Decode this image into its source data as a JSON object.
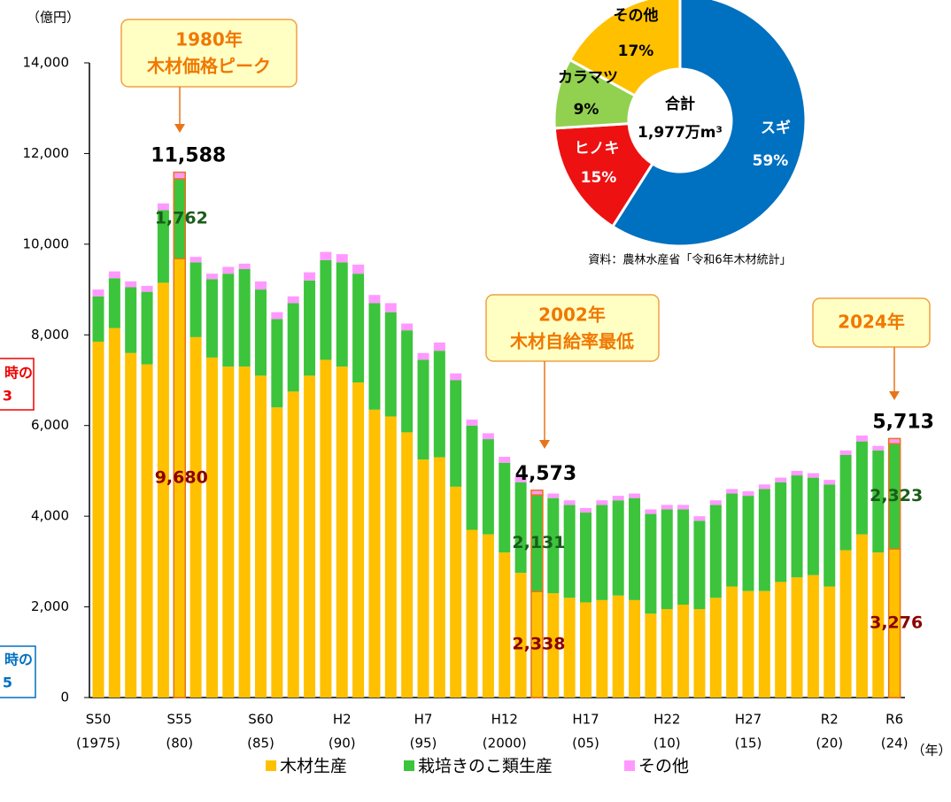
{
  "chart_data": [
    {
      "type": "stacked-bar",
      "y_unit": "（億円）",
      "x_unit": "（年）",
      "categories": [
        "S50",
        null,
        null,
        null,
        null,
        "S55",
        null,
        null,
        null,
        null,
        "S60",
        null,
        null,
        null,
        null,
        "H2",
        null,
        null,
        null,
        null,
        "H7",
        null,
        null,
        null,
        null,
        "H12",
        null,
        null,
        null,
        null,
        "H17",
        null,
        null,
        null,
        null,
        "H22",
        null,
        null,
        null,
        null,
        "H27",
        null,
        null,
        null,
        null,
        "R2",
        null,
        null,
        null,
        "R6"
      ],
      "category_years": [
        "(1975)",
        null,
        null,
        null,
        null,
        "(80)",
        null,
        null,
        null,
        null,
        "(85)",
        null,
        null,
        null,
        null,
        "(90)",
        null,
        null,
        null,
        null,
        "(95)",
        null,
        null,
        null,
        null,
        "(2000)",
        null,
        null,
        null,
        null,
        "(05)",
        null,
        null,
        null,
        null,
        "(10)",
        null,
        null,
        null,
        null,
        "(15)",
        null,
        null,
        null,
        null,
        "(20)",
        null,
        null,
        null,
        "(24)"
      ],
      "series": [
        {
          "name": "木材生産",
          "color": "#ffc000",
          "values": [
            7850,
            8150,
            7600,
            7350,
            9150,
            9680,
            7950,
            7500,
            7300,
            7300,
            7100,
            6400,
            6750,
            7100,
            7450,
            7300,
            6950,
            6350,
            6200,
            5850,
            5250,
            5300,
            4650,
            3700,
            3600,
            3200,
            2750,
            2338,
            2300,
            2200,
            2100,
            2150,
            2250,
            2150,
            1850,
            1950,
            2050,
            1950,
            2200,
            2450,
            2350,
            2350,
            2550,
            2650,
            2700,
            2450,
            3250,
            3600,
            3200,
            3276
          ],
          "value_labels": [
            null,
            null,
            null,
            null,
            null,
            "9,680",
            null,
            null,
            null,
            null,
            null,
            null,
            null,
            null,
            null,
            null,
            null,
            null,
            null,
            null,
            null,
            null,
            null,
            null,
            null,
            null,
            null,
            "2,338",
            null,
            null,
            null,
            null,
            null,
            null,
            null,
            null,
            null,
            null,
            null,
            null,
            null,
            null,
            null,
            null,
            null,
            null,
            null,
            null,
            null,
            "3,276"
          ],
          "label_color": "#8b0000"
        },
        {
          "name": "栽培きのこ類生産",
          "color": "#3cc43c",
          "values": [
            1000,
            1100,
            1450,
            1600,
            1600,
            1762,
            1650,
            1730,
            2050,
            2150,
            1900,
            1950,
            1950,
            2100,
            2200,
            2300,
            2400,
            2350,
            2300,
            2250,
            2200,
            2350,
            2350,
            2300,
            2100,
            1980,
            2000,
            2131,
            2100,
            2050,
            1980,
            2100,
            2100,
            2250,
            2200,
            2200,
            2100,
            1950,
            2050,
            2050,
            2100,
            2250,
            2200,
            2250,
            2150,
            2250,
            2100,
            2050,
            2250,
            2323
          ],
          "value_labels": [
            null,
            null,
            null,
            null,
            null,
            "1,762",
            null,
            null,
            null,
            null,
            null,
            null,
            null,
            null,
            null,
            null,
            null,
            null,
            null,
            null,
            null,
            null,
            null,
            null,
            null,
            null,
            null,
            "2,131",
            null,
            null,
            null,
            null,
            null,
            null,
            null,
            null,
            null,
            null,
            null,
            null,
            null,
            null,
            null,
            null,
            null,
            null,
            null,
            null,
            null,
            "2,323"
          ],
          "label_color": "#1a5c1a"
        },
        {
          "name": "その他",
          "color": "#ff99ff",
          "values": [
            150,
            150,
            130,
            130,
            150,
            146,
            120,
            120,
            150,
            120,
            180,
            150,
            150,
            180,
            180,
            180,
            200,
            180,
            200,
            150,
            150,
            180,
            150,
            130,
            130,
            130,
            120,
            104,
            100,
            100,
            100,
            100,
            100,
            100,
            100,
            100,
            100,
            100,
            100,
            100,
            100,
            100,
            100,
            100,
            100,
            100,
            100,
            130,
            100,
            114
          ]
        }
      ],
      "total_labels": [
        null,
        null,
        null,
        null,
        null,
        "11,588",
        null,
        null,
        null,
        null,
        null,
        null,
        null,
        null,
        null,
        null,
        null,
        null,
        null,
        null,
        null,
        null,
        null,
        null,
        null,
        null,
        null,
        "4,573",
        null,
        null,
        null,
        null,
        null,
        null,
        null,
        null,
        null,
        null,
        null,
        null,
        null,
        null,
        null,
        null,
        null,
        null,
        null,
        null,
        null,
        "5,713"
      ],
      "highlight_color": "#e8741a",
      "ylim": [
        0,
        14000
      ],
      "yticks": [
        0,
        {
          "value": 2000,
          "label": "2,000"
        },
        {
          "value": 4000,
          "label": "4,000"
        },
        {
          "value": 6000,
          "label": "6,000"
        },
        {
          "value": 8000,
          "label": "8,000"
        },
        {
          "value": 10000,
          "label": "10,000"
        },
        {
          "value": 12000,
          "label": "12,000"
        },
        {
          "value": 14000,
          "label": "14,000"
        }
      ],
      "annotations": [
        [
          "1980年",
          "木材価格ピーク"
        ],
        [
          "2002年",
          "木材自給率最低"
        ],
        [
          "2024年"
        ]
      ],
      "clipped_notes": [
        [
          "時の",
          "3"
        ],
        [
          "時の",
          "5"
        ]
      ],
      "legend": "bottom"
    },
    {
      "type": "donut",
      "center": [
        "合計",
        "1,977万m³"
      ],
      "categories": [
        "スギ",
        "ヒノキ",
        "カラマツ",
        "その他"
      ],
      "values": [
        59,
        15,
        9,
        17
      ],
      "value_labels": [
        "59%",
        "15%",
        "9%",
        "17%"
      ],
      "colors": [
        "#0070c0",
        "#ee1111",
        "#92d050",
        "#ffc000"
      ],
      "source": "資料：農林水産省「令和6年木材統計」"
    }
  ]
}
